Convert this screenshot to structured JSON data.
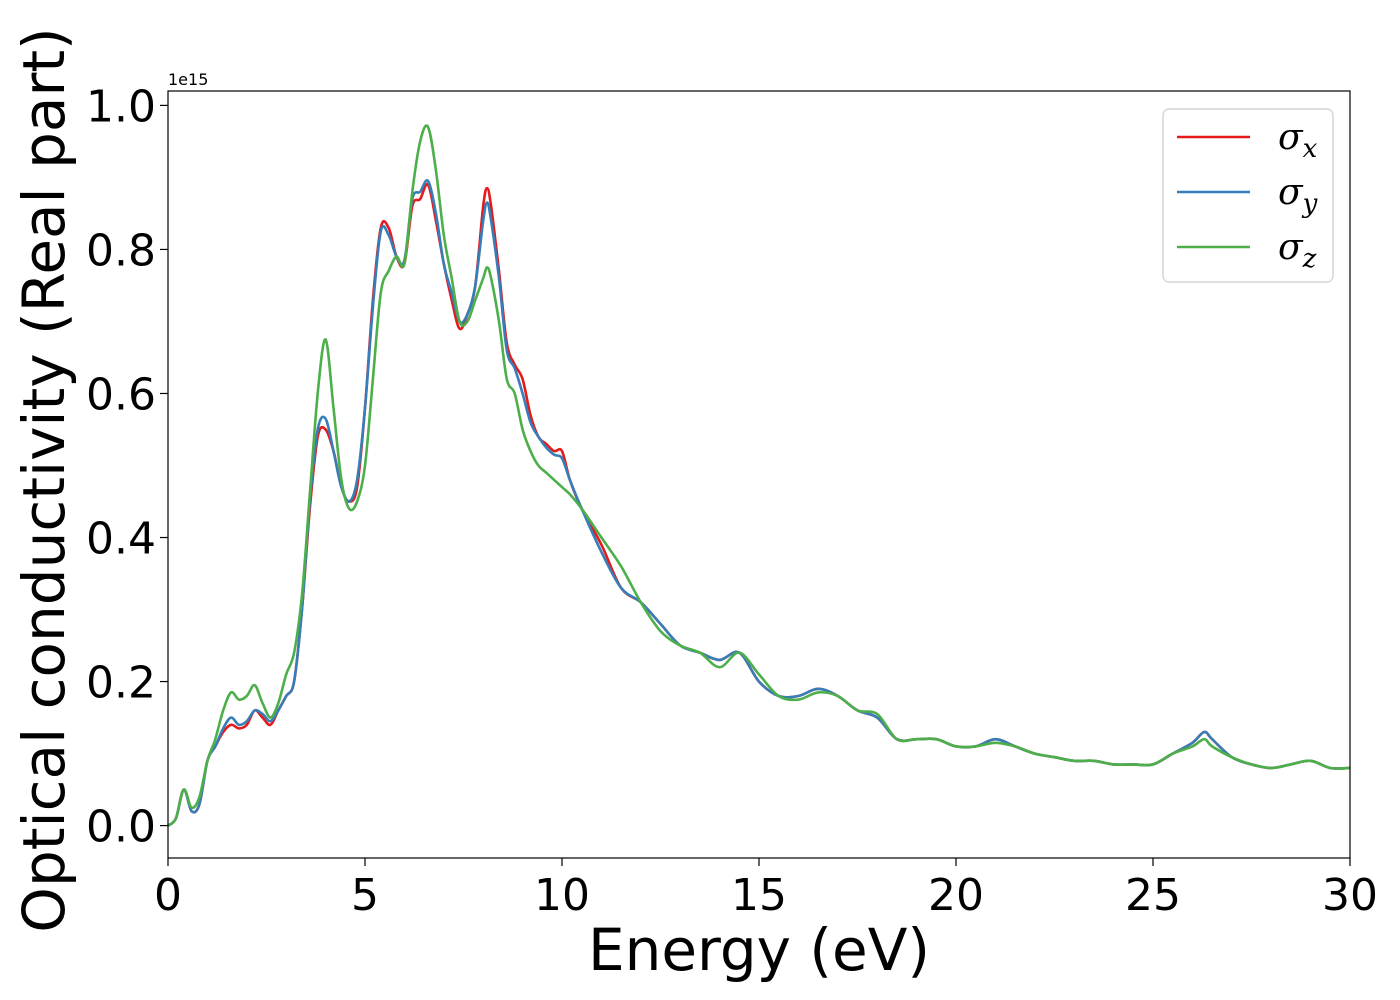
{
  "chart_data": {
    "type": "line",
    "xlabel": "Energy (eV)",
    "ylabel": "Optical conductivity (Real part)",
    "y_offset_label": "1e15",
    "xlim": [
      0,
      30
    ],
    "ylim": [
      -0.045,
      1.02
    ],
    "x_ticks": [
      0,
      5,
      10,
      15,
      20,
      25,
      30
    ],
    "x_tick_labels": [
      "0",
      "5",
      "10",
      "15",
      "20",
      "25",
      "30"
    ],
    "y_ticks": [
      0.0,
      0.2,
      0.4,
      0.6,
      0.8,
      1.0
    ],
    "y_tick_labels": [
      "0.0",
      "0.2",
      "0.4",
      "0.6",
      "0.8",
      "1.0"
    ],
    "grid": false,
    "legend": "top-right",
    "colors": {
      "sigma_x": "#e41a1c",
      "sigma_y": "#377eb8",
      "sigma_z": "#4daf4a"
    },
    "series": [
      {
        "name": "σx",
        "symbol": "σ",
        "subscript": "x",
        "color": "#e41a1c",
        "x": [
          0,
          0.2,
          0.4,
          0.6,
          0.8,
          1.0,
          1.2,
          1.4,
          1.6,
          1.8,
          2.0,
          2.2,
          2.4,
          2.6,
          2.8,
          3.0,
          3.2,
          3.4,
          3.6,
          3.8,
          4.0,
          4.2,
          4.4,
          4.6,
          4.8,
          5.0,
          5.2,
          5.4,
          5.6,
          5.8,
          6.0,
          6.2,
          6.4,
          6.6,
          6.8,
          7.0,
          7.2,
          7.4,
          7.6,
          7.8,
          8.0,
          8.1,
          8.2,
          8.4,
          8.6,
          8.8,
          9.0,
          9.2,
          9.4,
          9.6,
          9.8,
          10.0,
          10.2,
          10.5,
          11.0,
          11.5,
          12.0,
          12.5,
          13.0,
          13.5,
          14.0,
          14.5,
          15.0,
          15.5,
          16.0,
          16.5,
          17.0,
          17.5,
          18.0,
          18.5,
          19.0,
          19.5,
          20.0,
          20.5,
          21.0,
          21.5,
          22.0,
          22.5,
          23.0,
          23.5,
          24.0,
          24.5,
          25.0,
          25.5,
          26.0,
          26.3,
          26.5,
          27.0,
          27.5,
          28.0,
          28.5,
          29.0,
          29.5,
          30.0
        ],
        "y": [
          0.0,
          0.01,
          0.05,
          0.02,
          0.03,
          0.09,
          0.11,
          0.13,
          0.14,
          0.135,
          0.14,
          0.16,
          0.15,
          0.14,
          0.16,
          0.18,
          0.2,
          0.3,
          0.44,
          0.54,
          0.55,
          0.52,
          0.47,
          0.45,
          0.47,
          0.58,
          0.73,
          0.83,
          0.83,
          0.79,
          0.78,
          0.86,
          0.87,
          0.89,
          0.84,
          0.78,
          0.73,
          0.69,
          0.71,
          0.75,
          0.86,
          0.885,
          0.86,
          0.77,
          0.67,
          0.64,
          0.62,
          0.57,
          0.54,
          0.53,
          0.52,
          0.52,
          0.48,
          0.44,
          0.39,
          0.33,
          0.31,
          0.28,
          0.25,
          0.24,
          0.23,
          0.24,
          0.2,
          0.18,
          0.18,
          0.19,
          0.18,
          0.16,
          0.15,
          0.12,
          0.12,
          0.12,
          0.11,
          0.11,
          0.12,
          0.11,
          0.1,
          0.095,
          0.09,
          0.09,
          0.085,
          0.085,
          0.085,
          0.1,
          0.115,
          0.13,
          0.12,
          0.095,
          0.085,
          0.08,
          0.085,
          0.09,
          0.08,
          0.08
        ]
      },
      {
        "name": "σy",
        "symbol": "σ",
        "subscript": "y",
        "color": "#377eb8",
        "x": [
          0,
          0.2,
          0.4,
          0.6,
          0.8,
          1.0,
          1.2,
          1.4,
          1.6,
          1.8,
          2.0,
          2.2,
          2.4,
          2.6,
          2.8,
          3.0,
          3.2,
          3.4,
          3.6,
          3.8,
          4.0,
          4.2,
          4.4,
          4.6,
          4.8,
          5.0,
          5.2,
          5.4,
          5.6,
          5.8,
          6.0,
          6.2,
          6.4,
          6.6,
          6.8,
          7.0,
          7.2,
          7.4,
          7.6,
          7.8,
          8.0,
          8.1,
          8.2,
          8.4,
          8.6,
          8.8,
          9.0,
          9.2,
          9.4,
          9.6,
          9.8,
          10.0,
          10.2,
          10.5,
          11.0,
          11.5,
          12.0,
          12.5,
          13.0,
          13.5,
          14.0,
          14.5,
          15.0,
          15.5,
          16.0,
          16.5,
          17.0,
          17.5,
          18.0,
          18.5,
          19.0,
          19.5,
          20.0,
          20.5,
          21.0,
          21.5,
          22.0,
          22.5,
          23.0,
          23.5,
          24.0,
          24.5,
          25.0,
          25.5,
          26.0,
          26.3,
          26.5,
          27.0,
          27.5,
          28.0,
          28.5,
          29.0,
          29.5,
          30.0
        ],
        "y": [
          0.0,
          0.01,
          0.05,
          0.02,
          0.03,
          0.09,
          0.11,
          0.135,
          0.15,
          0.14,
          0.145,
          0.16,
          0.155,
          0.145,
          0.16,
          0.18,
          0.2,
          0.3,
          0.45,
          0.55,
          0.565,
          0.52,
          0.47,
          0.45,
          0.48,
          0.58,
          0.72,
          0.825,
          0.82,
          0.79,
          0.785,
          0.87,
          0.88,
          0.895,
          0.85,
          0.78,
          0.74,
          0.7,
          0.71,
          0.75,
          0.84,
          0.865,
          0.84,
          0.76,
          0.66,
          0.635,
          0.6,
          0.56,
          0.54,
          0.525,
          0.515,
          0.51,
          0.48,
          0.44,
          0.38,
          0.33,
          0.31,
          0.28,
          0.25,
          0.24,
          0.23,
          0.24,
          0.2,
          0.18,
          0.18,
          0.19,
          0.18,
          0.16,
          0.15,
          0.12,
          0.12,
          0.12,
          0.11,
          0.11,
          0.12,
          0.11,
          0.1,
          0.095,
          0.09,
          0.09,
          0.085,
          0.085,
          0.085,
          0.1,
          0.115,
          0.13,
          0.12,
          0.095,
          0.085,
          0.08,
          0.085,
          0.09,
          0.08,
          0.08
        ]
      },
      {
        "name": "σz",
        "symbol": "σ",
        "subscript": "z",
        "color": "#4daf4a",
        "x": [
          0,
          0.2,
          0.4,
          0.6,
          0.8,
          1.0,
          1.2,
          1.4,
          1.6,
          1.8,
          2.0,
          2.2,
          2.4,
          2.6,
          2.8,
          3.0,
          3.2,
          3.4,
          3.6,
          3.8,
          4.0,
          4.2,
          4.4,
          4.6,
          4.8,
          5.0,
          5.2,
          5.4,
          5.6,
          5.8,
          6.0,
          6.2,
          6.4,
          6.6,
          6.8,
          7.0,
          7.2,
          7.4,
          7.6,
          7.8,
          8.0,
          8.1,
          8.2,
          8.4,
          8.6,
          8.8,
          9.0,
          9.2,
          9.4,
          9.6,
          9.8,
          10.0,
          10.2,
          10.5,
          11.0,
          11.5,
          12.0,
          12.5,
          13.0,
          13.5,
          14.0,
          14.5,
          15.0,
          15.5,
          16.0,
          16.5,
          17.0,
          17.5,
          18.0,
          18.5,
          19.0,
          19.5,
          20.0,
          20.5,
          21.0,
          21.5,
          22.0,
          22.5,
          23.0,
          23.5,
          24.0,
          24.5,
          25.0,
          25.5,
          26.0,
          26.3,
          26.5,
          27.0,
          27.5,
          28.0,
          28.5,
          29.0,
          29.5,
          30.0
        ],
        "y": [
          0.0,
          0.01,
          0.05,
          0.025,
          0.04,
          0.09,
          0.12,
          0.16,
          0.185,
          0.175,
          0.18,
          0.195,
          0.17,
          0.15,
          0.17,
          0.21,
          0.24,
          0.32,
          0.46,
          0.6,
          0.675,
          0.58,
          0.48,
          0.44,
          0.45,
          0.5,
          0.62,
          0.74,
          0.77,
          0.79,
          0.78,
          0.88,
          0.95,
          0.97,
          0.91,
          0.82,
          0.76,
          0.7,
          0.7,
          0.73,
          0.76,
          0.775,
          0.76,
          0.7,
          0.62,
          0.6,
          0.55,
          0.52,
          0.5,
          0.49,
          0.48,
          0.47,
          0.46,
          0.44,
          0.4,
          0.36,
          0.31,
          0.27,
          0.25,
          0.24,
          0.22,
          0.24,
          0.21,
          0.18,
          0.175,
          0.185,
          0.18,
          0.16,
          0.155,
          0.12,
          0.12,
          0.12,
          0.11,
          0.11,
          0.115,
          0.11,
          0.1,
          0.095,
          0.09,
          0.09,
          0.085,
          0.085,
          0.085,
          0.1,
          0.11,
          0.12,
          0.11,
          0.095,
          0.085,
          0.08,
          0.085,
          0.09,
          0.08,
          0.08
        ]
      }
    ]
  }
}
